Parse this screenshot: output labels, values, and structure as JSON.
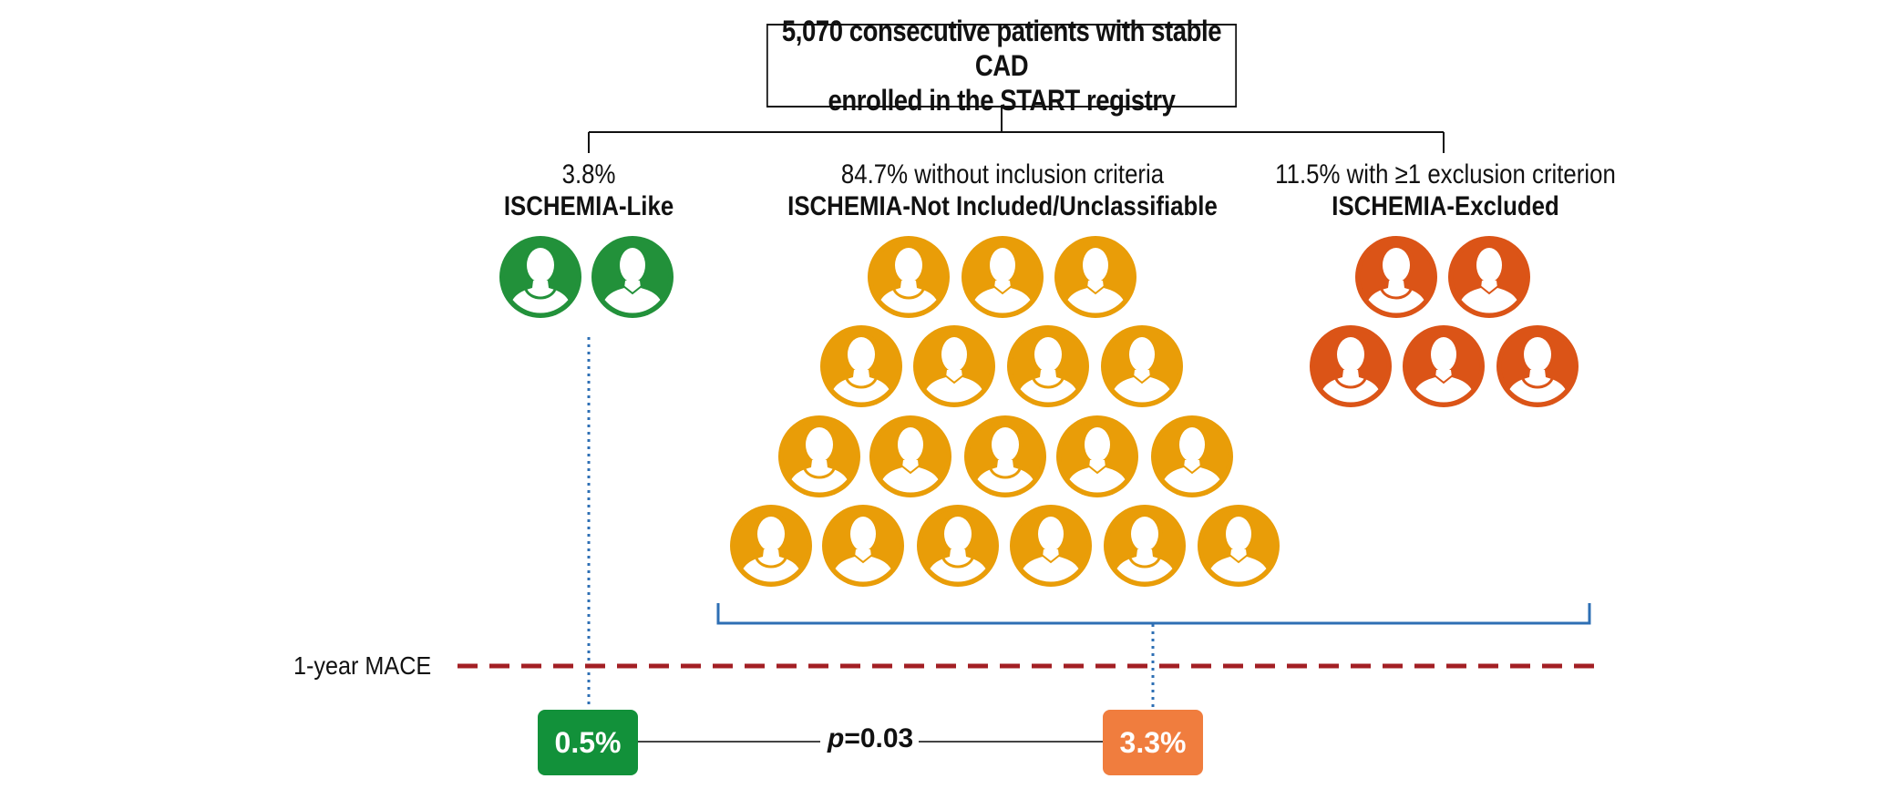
{
  "top_box": {
    "line1": "5,070 consecutive patients with stable CAD",
    "line2": "enrolled in the START registry"
  },
  "groups": [
    {
      "id": "like",
      "pct": "3.8%",
      "name": "ISCHEMIA-Like",
      "color": "#22913a",
      "icon_name": "person-icon",
      "icon_count": 2
    },
    {
      "id": "not-included",
      "pct": "84.7% without inclusion criteria",
      "name": "ISCHEMIA-Not Included/Unclassifiable",
      "color": "#e99d08",
      "icon_name": "person-icon",
      "icon_count": 18
    },
    {
      "id": "excluded",
      "pct": "11.5% with ≥1 exclusion criterion",
      "name": "ISCHEMIA-Excluded",
      "color": "#db5417",
      "icon_name": "person-icon",
      "icon_count": 5
    }
  ],
  "outcome": {
    "label": "1-year MACE",
    "like_value": "0.5%",
    "other_value": "3.3%",
    "p_prefix": "p",
    "p_rest": "=0.03",
    "like_color": "#12913a",
    "other_color": "#f07d3e",
    "dash_color": "#a31f24",
    "bracket_color": "#2e6fb4"
  }
}
